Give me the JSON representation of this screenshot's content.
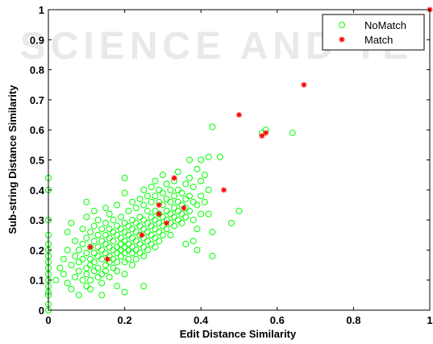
{
  "watermark": "SCIENCE AND TE",
  "chart_data": {
    "type": "scatter",
    "xlabel": "Edit Distance Similarity",
    "ylabel": "Sub-string Distance Similarity",
    "xlim": [
      0,
      1
    ],
    "ylim": [
      0,
      1
    ],
    "xticks": [
      "0",
      "0.2",
      "0.4",
      "0.6",
      "0.8",
      "1"
    ],
    "yticks": [
      "0",
      "0.1",
      "0.2",
      "0.3",
      "0.4",
      "0.5",
      "0.6",
      "0.7",
      "0.8",
      "0.9",
      "1"
    ],
    "grid": false,
    "legend_position": "top-right",
    "series": [
      {
        "name": "NoMatch",
        "marker": "circle",
        "color": "#00ff00",
        "points": [
          [
            0,
            0
          ],
          [
            0,
            0.44
          ],
          [
            0,
            0.4
          ],
          [
            0,
            0.3
          ],
          [
            0,
            0.25
          ],
          [
            0,
            0.2
          ],
          [
            0,
            0.16
          ],
          [
            0,
            0.12
          ],
          [
            0,
            0.1
          ],
          [
            0,
            0.08
          ],
          [
            0,
            0.06
          ],
          [
            0,
            0.22
          ],
          [
            0,
            0.18
          ],
          [
            0,
            0.14
          ],
          [
            0,
            0.05
          ],
          [
            0,
            0.02
          ],
          [
            0.02,
            0.1
          ],
          [
            0.03,
            0.14
          ],
          [
            0.04,
            0.17
          ],
          [
            0.04,
            0.12
          ],
          [
            0.05,
            0.2
          ],
          [
            0.05,
            0.09
          ],
          [
            0.05,
            0.26
          ],
          [
            0.06,
            0.15
          ],
          [
            0.06,
            0.29
          ],
          [
            0.06,
            0.07
          ],
          [
            0.07,
            0.11
          ],
          [
            0.07,
            0.18
          ],
          [
            0.07,
            0.23
          ],
          [
            0.08,
            0.13
          ],
          [
            0.08,
            0.2
          ],
          [
            0.08,
            0.05
          ],
          [
            0.08,
            0.16
          ],
          [
            0.09,
            0.1
          ],
          [
            0.09,
            0.22
          ],
          [
            0.09,
            0.17
          ],
          [
            0.09,
            0.27
          ],
          [
            0.1,
            0.14
          ],
          [
            0.1,
            0.19
          ],
          [
            0.1,
            0.12
          ],
          [
            0.1,
            0.24
          ],
          [
            0.1,
            0.08
          ],
          [
            0.1,
            0.31
          ],
          [
            0.1,
            0.36
          ],
          [
            0.11,
            0.15
          ],
          [
            0.11,
            0.21
          ],
          [
            0.11,
            0.17
          ],
          [
            0.11,
            0.1
          ],
          [
            0.11,
            0.26
          ],
          [
            0.12,
            0.13
          ],
          [
            0.12,
            0.19
          ],
          [
            0.12,
            0.23
          ],
          [
            0.12,
            0.16
          ],
          [
            0.12,
            0.28
          ],
          [
            0.12,
            0.33
          ],
          [
            0.13,
            0.18
          ],
          [
            0.13,
            0.11
          ],
          [
            0.13,
            0.21
          ],
          [
            0.13,
            0.25
          ],
          [
            0.13,
            0.14
          ],
          [
            0.13,
            0.3
          ],
          [
            0.14,
            0.17
          ],
          [
            0.14,
            0.2
          ],
          [
            0.14,
            0.23
          ],
          [
            0.14,
            0.12
          ],
          [
            0.14,
            0.27
          ],
          [
            0.14,
            0.09
          ],
          [
            0.15,
            0.19
          ],
          [
            0.15,
            0.15
          ],
          [
            0.15,
            0.22
          ],
          [
            0.15,
            0.25
          ],
          [
            0.15,
            0.29
          ],
          [
            0.15,
            0.13
          ],
          [
            0.15,
            0.34
          ],
          [
            0.16,
            0.18
          ],
          [
            0.16,
            0.21
          ],
          [
            0.16,
            0.24
          ],
          [
            0.16,
            0.16
          ],
          [
            0.16,
            0.27
          ],
          [
            0.16,
            0.11
          ],
          [
            0.16,
            0.32
          ],
          [
            0.17,
            0.2
          ],
          [
            0.17,
            0.23
          ],
          [
            0.17,
            0.17
          ],
          [
            0.17,
            0.26
          ],
          [
            0.17,
            0.14
          ],
          [
            0.17,
            0.3
          ],
          [
            0.18,
            0.21
          ],
          [
            0.18,
            0.19
          ],
          [
            0.18,
            0.25
          ],
          [
            0.18,
            0.16
          ],
          [
            0.18,
            0.28
          ],
          [
            0.18,
            0.13
          ],
          [
            0.18,
            0.35
          ],
          [
            0.19,
            0.22
          ],
          [
            0.19,
            0.2
          ],
          [
            0.19,
            0.24
          ],
          [
            0.19,
            0.18
          ],
          [
            0.19,
            0.27
          ],
          [
            0.19,
            0.31
          ],
          [
            0.2,
            0.23
          ],
          [
            0.2,
            0.21
          ],
          [
            0.2,
            0.19
          ],
          [
            0.2,
            0.26
          ],
          [
            0.2,
            0.16
          ],
          [
            0.2,
            0.29
          ],
          [
            0.2,
            0.44
          ],
          [
            0.2,
            0.39
          ],
          [
            0.2,
            0.12
          ],
          [
            0.21,
            0.22
          ],
          [
            0.21,
            0.25
          ],
          [
            0.21,
            0.2
          ],
          [
            0.21,
            0.28
          ],
          [
            0.21,
            0.17
          ],
          [
            0.21,
            0.33
          ],
          [
            0.22,
            0.24
          ],
          [
            0.22,
            0.21
          ],
          [
            0.22,
            0.27
          ],
          [
            0.22,
            0.19
          ],
          [
            0.22,
            0.3
          ],
          [
            0.22,
            0.15
          ],
          [
            0.22,
            0.36
          ],
          [
            0.23,
            0.23
          ],
          [
            0.23,
            0.26
          ],
          [
            0.23,
            0.2
          ],
          [
            0.23,
            0.29
          ],
          [
            0.23,
            0.17
          ],
          [
            0.23,
            0.34
          ],
          [
            0.24,
            0.25
          ],
          [
            0.24,
            0.22
          ],
          [
            0.24,
            0.28
          ],
          [
            0.24,
            0.19
          ],
          [
            0.24,
            0.31
          ],
          [
            0.24,
            0.37
          ],
          [
            0.25,
            0.24
          ],
          [
            0.25,
            0.27
          ],
          [
            0.25,
            0.21
          ],
          [
            0.25,
            0.3
          ],
          [
            0.25,
            0.18
          ],
          [
            0.25,
            0.35
          ],
          [
            0.25,
            0.4
          ],
          [
            0.26,
            0.26
          ],
          [
            0.26,
            0.23
          ],
          [
            0.26,
            0.29
          ],
          [
            0.26,
            0.2
          ],
          [
            0.26,
            0.33
          ],
          [
            0.26,
            0.38
          ],
          [
            0.27,
            0.25
          ],
          [
            0.27,
            0.28
          ],
          [
            0.27,
            0.22
          ],
          [
            0.27,
            0.31
          ],
          [
            0.27,
            0.36
          ],
          [
            0.27,
            0.41
          ],
          [
            0.28,
            0.27
          ],
          [
            0.28,
            0.24
          ],
          [
            0.28,
            0.3
          ],
          [
            0.28,
            0.33
          ],
          [
            0.28,
            0.38
          ],
          [
            0.28,
            0.21
          ],
          [
            0.28,
            0.43
          ],
          [
            0.29,
            0.26
          ],
          [
            0.29,
            0.29
          ],
          [
            0.29,
            0.32
          ],
          [
            0.29,
            0.23
          ],
          [
            0.29,
            0.36
          ],
          [
            0.29,
            0.4
          ],
          [
            0.3,
            0.28
          ],
          [
            0.3,
            0.31
          ],
          [
            0.3,
            0.25
          ],
          [
            0.3,
            0.35
          ],
          [
            0.3,
            0.39
          ],
          [
            0.3,
            0.45
          ],
          [
            0.31,
            0.3
          ],
          [
            0.31,
            0.27
          ],
          [
            0.31,
            0.33
          ],
          [
            0.31,
            0.37
          ],
          [
            0.31,
            0.42
          ],
          [
            0.32,
            0.29
          ],
          [
            0.32,
            0.32
          ],
          [
            0.32,
            0.36
          ],
          [
            0.32,
            0.4
          ],
          [
            0.32,
            0.25
          ],
          [
            0.33,
            0.31
          ],
          [
            0.33,
            0.34
          ],
          [
            0.33,
            0.38
          ],
          [
            0.33,
            0.43
          ],
          [
            0.33,
            0.28
          ],
          [
            0.34,
            0.33
          ],
          [
            0.34,
            0.36
          ],
          [
            0.34,
            0.3
          ],
          [
            0.34,
            0.4
          ],
          [
            0.34,
            0.46
          ],
          [
            0.35,
            0.32
          ],
          [
            0.35,
            0.35
          ],
          [
            0.35,
            0.39
          ],
          [
            0.35,
            0.29
          ],
          [
            0.36,
            0.34
          ],
          [
            0.36,
            0.37
          ],
          [
            0.36,
            0.42
          ],
          [
            0.36,
            0.31
          ],
          [
            0.37,
            0.33
          ],
          [
            0.37,
            0.38
          ],
          [
            0.37,
            0.44
          ],
          [
            0.37,
            0.5
          ],
          [
            0.38,
            0.36
          ],
          [
            0.38,
            0.41
          ],
          [
            0.38,
            0.3
          ],
          [
            0.38,
            0.23
          ],
          [
            0.39,
            0.35
          ],
          [
            0.39,
            0.47
          ],
          [
            0.39,
            0.27
          ],
          [
            0.4,
            0.38
          ],
          [
            0.4,
            0.43
          ],
          [
            0.4,
            0.5
          ],
          [
            0.4,
            0.32
          ],
          [
            0.41,
            0.45
          ],
          [
            0.41,
            0.36
          ],
          [
            0.42,
            0.4
          ],
          [
            0.42,
            0.51
          ],
          [
            0.42,
            0.32
          ],
          [
            0.43,
            0.61
          ],
          [
            0.43,
            0.18
          ],
          [
            0.43,
            0.26
          ],
          [
            0.45,
            0.51
          ],
          [
            0.48,
            0.29
          ],
          [
            0.5,
            0.33
          ],
          [
            0.56,
            0.59
          ],
          [
            0.57,
            0.6
          ],
          [
            0.64,
            0.59
          ],
          [
            0.36,
            0.22
          ],
          [
            0.39,
            0.2
          ],
          [
            0.25,
            0.08
          ],
          [
            0.2,
            0.06
          ],
          [
            0.18,
            0.08
          ],
          [
            0.14,
            0.05
          ],
          [
            0.11,
            0.07
          ]
        ]
      },
      {
        "name": "Match",
        "marker": "star",
        "color": "#ff0000",
        "points": [
          [
            0.11,
            0.21
          ],
          [
            0.155,
            0.17
          ],
          [
            0.245,
            0.25
          ],
          [
            0.29,
            0.32
          ],
          [
            0.29,
            0.35
          ],
          [
            0.31,
            0.29
          ],
          [
            0.33,
            0.44
          ],
          [
            0.355,
            0.34
          ],
          [
            0.46,
            0.4
          ],
          [
            0.5,
            0.65
          ],
          [
            0.56,
            0.58
          ],
          [
            0.57,
            0.59
          ],
          [
            0.67,
            0.75
          ],
          [
            1,
            1
          ]
        ]
      }
    ]
  }
}
